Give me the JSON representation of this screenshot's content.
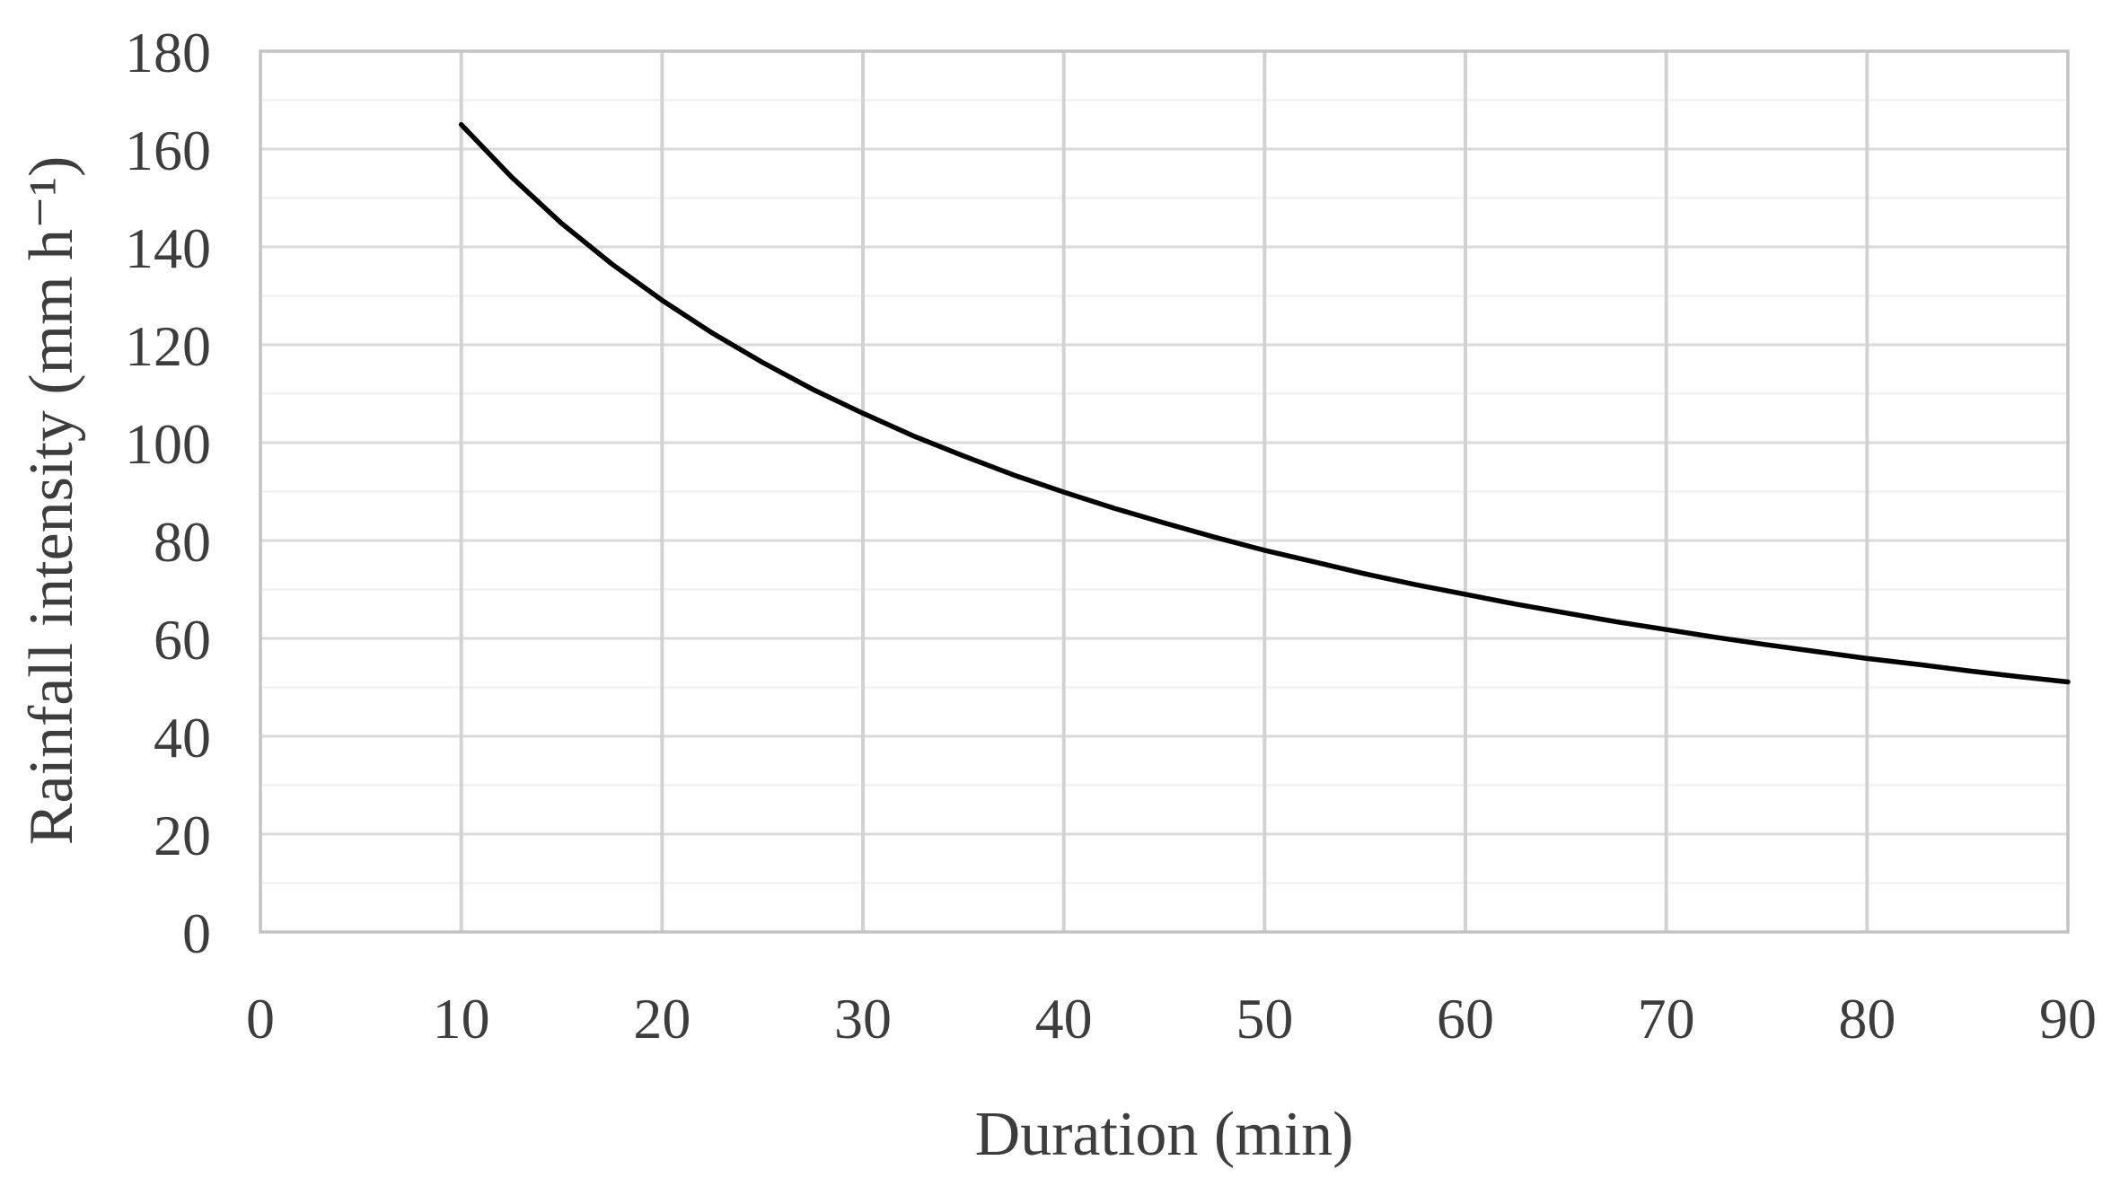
{
  "chart_data": {
    "type": "line",
    "title": "",
    "xlabel": "Duration (min)",
    "ylabel": "Rainfall intensity (mm h⁻¹)",
    "xlim": [
      0,
      90
    ],
    "ylim": [
      0,
      180
    ],
    "x_ticks": [
      0,
      10,
      20,
      30,
      40,
      50,
      60,
      70,
      80,
      90
    ],
    "y_ticks": [
      0,
      20,
      40,
      60,
      80,
      100,
      120,
      140,
      160,
      180
    ],
    "y_minor_ticks": [
      10,
      30,
      50,
      70,
      90,
      110,
      130,
      150,
      170
    ],
    "grid": "on",
    "legend": "none",
    "series": [
      {
        "name": "Rainfall intensity",
        "x": [
          10,
          12.5,
          15,
          17.5,
          20,
          22.5,
          25,
          27.5,
          30,
          32.5,
          35,
          37.5,
          40,
          42.5,
          45,
          47.5,
          50,
          52.5,
          55,
          57.5,
          60,
          62.5,
          65,
          67.5,
          70,
          72.5,
          75,
          77.5,
          80,
          82.5,
          85,
          87.5,
          90
        ],
        "y": [
          165.0,
          154.3,
          144.8,
          136.5,
          129.1,
          122.4,
          116.4,
          110.9,
          106.0,
          101.4,
          97.3,
          93.4,
          89.9,
          86.6,
          83.6,
          80.7,
          78.0,
          75.6,
          73.2,
          71.0,
          69.0,
          67.0,
          65.2,
          63.4,
          61.8,
          60.2,
          58.7,
          57.3,
          55.9,
          54.7,
          53.4,
          52.2,
          51.1
        ]
      }
    ],
    "colors": {
      "line": "#000000",
      "major_grid": "#dadada",
      "minor_grid": "#efefef",
      "vertical_grid": "#d2d2d2",
      "plot_border": "#c3c3c3",
      "text": "#3d3d3d",
      "background": "#ffffff"
    }
  }
}
